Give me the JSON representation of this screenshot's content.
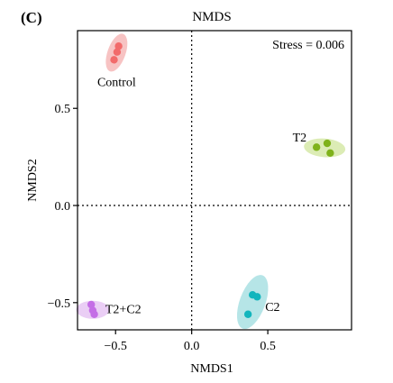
{
  "panel_label": "(C)",
  "chart_data": {
    "type": "scatter",
    "title": "NMDS",
    "xlabel": "NMDS1",
    "ylabel": "NMDS2",
    "xlim": [
      -0.75,
      1.05
    ],
    "ylim": [
      -0.64,
      0.9
    ],
    "xticks": [
      -0.5,
      0.0,
      0.5
    ],
    "xtick_labels": [
      "−0.5",
      "0.0",
      "0.5"
    ],
    "yticks": [
      -0.5,
      0.0,
      0.5
    ],
    "ytick_labels": [
      "−0.5",
      "0.0",
      "0.5"
    ],
    "reference_lines": {
      "x": 0,
      "y": 0,
      "style": "dotted"
    },
    "annotation": "Stress = 0.006",
    "grid": false,
    "legend": "none",
    "groups": [
      {
        "label": "Control",
        "color": "#f26b6b",
        "ellipse_color": "#f6b8b8",
        "points": [
          [
            -0.48,
            0.82
          ],
          [
            -0.49,
            0.79
          ],
          [
            -0.51,
            0.75
          ]
        ]
      },
      {
        "label": "T2",
        "color": "#7fb21a",
        "ellipse_color": "#d6e9a8",
        "points": [
          [
            0.82,
            0.3
          ],
          [
            0.89,
            0.32
          ],
          [
            0.91,
            0.27
          ]
        ]
      },
      {
        "label": "C2",
        "color": "#12b5bd",
        "ellipse_color": "#a9e0e3",
        "points": [
          [
            0.4,
            -0.46
          ],
          [
            0.43,
            -0.47
          ],
          [
            0.37,
            -0.56
          ]
        ]
      },
      {
        "label": "T2+C2",
        "color": "#c46ee6",
        "ellipse_color": "#e6c5f3",
        "points": [
          [
            -0.66,
            -0.51
          ],
          [
            -0.65,
            -0.54
          ],
          [
            -0.64,
            -0.56
          ]
        ]
      }
    ]
  }
}
